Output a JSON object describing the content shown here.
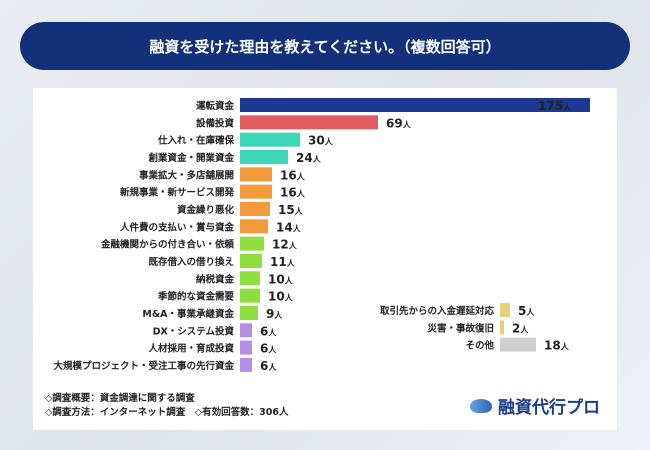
{
  "title": "融資を受けた理由を教えてください。（複数回答可）",
  "unit": "人",
  "colors": {
    "navy": "#1b3990",
    "red": "#e05a5f",
    "teal": "#3dd6b9",
    "orange": "#f59a3a",
    "green": "#8ede3e",
    "purple": "#b48ee6",
    "yellow": "#e8cf7a",
    "gray": "#cfcfcf"
  },
  "chart_data": {
    "type": "bar",
    "orientation": "horizontal",
    "title": "融資を受けた理由を教えてください。（複数回答可）",
    "series": [
      {
        "name": "main",
        "categories": [
          "運転資金",
          "設備投資",
          "仕入れ・在庫確保",
          "創業資金・開業資金",
          "事業拡大・多店舗展開",
          "新規事業・新サービス開発",
          "資金繰り悪化",
          "人件費の支払い・賞与資金",
          "金融機関からの付き合い・依頼",
          "既存借入の借り換え",
          "納税資金",
          "季節的な資金需要",
          "M&A・事業承継資金",
          "DX・システム投資",
          "人材採用・育成投資",
          "大規模プロジェクト・受注工事の先行資金"
        ],
        "values": [
          175,
          69,
          30,
          24,
          16,
          16,
          15,
          14,
          12,
          11,
          10,
          10,
          9,
          6,
          6,
          6
        ],
        "colors": [
          "navy",
          "red",
          "teal",
          "teal",
          "orange",
          "orange",
          "orange",
          "orange",
          "green",
          "green",
          "green",
          "green",
          "green",
          "purple",
          "purple",
          "purple"
        ]
      },
      {
        "name": "other",
        "categories": [
          "取引先からの入金遅延対応",
          "災害・事故復旧",
          "その他"
        ],
        "values": [
          5,
          2,
          18
        ],
        "colors": [
          "yellow",
          "yellow",
          "gray"
        ]
      }
    ]
  },
  "notes": {
    "line1": "◇調査概要：資金調達に関する調査",
    "line2": "◇調査方法：インターネット調査　◇有効回答数：306人"
  },
  "logo": "融資代行プロ"
}
